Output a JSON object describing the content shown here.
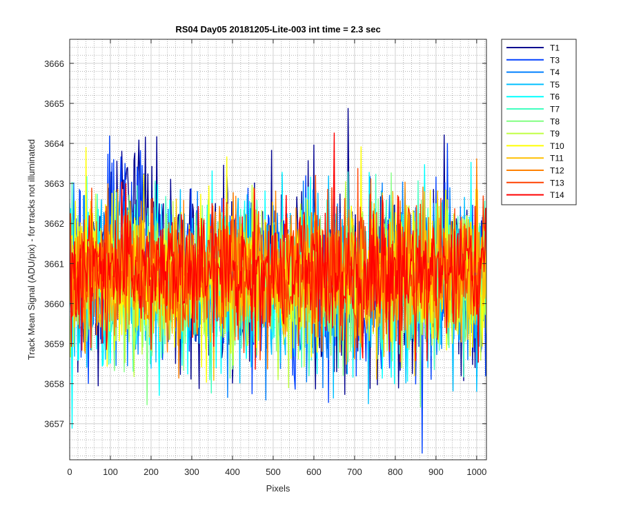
{
  "chart_data": {
    "type": "line",
    "title": "RS04 Day05 20181205-Lite-003 int time = 2.3 sec",
    "xlabel": "Pixels",
    "ylabel": "Track Mean Signal (ADU/pix) - for tracks not illuminated",
    "xlim": [
      0,
      1024
    ],
    "ylim": [
      3656.1,
      3666.6
    ],
    "xticks": [
      0,
      100,
      200,
      300,
      400,
      500,
      600,
      700,
      800,
      900,
      1000
    ],
    "yticks": [
      3657,
      3658,
      3659,
      3660,
      3661,
      3662,
      3663,
      3664,
      3665,
      3666
    ],
    "grid": "major and minor",
    "legend_position": "outside top-right",
    "series": [
      {
        "name": "T1",
        "color": "#00008f",
        "mean": 3660.6,
        "sd": 1.25,
        "bump": 3.3
      },
      {
        "name": "T3",
        "color": "#0040ff",
        "mean": 3660.6,
        "sd": 1.2,
        "bump": 2.0
      },
      {
        "name": "T4",
        "color": "#0080ff",
        "mean": 3660.6,
        "sd": 1.15,
        "bump": 0
      },
      {
        "name": "T5",
        "color": "#00bfff",
        "mean": 3660.6,
        "sd": 1.1,
        "bump": 0
      },
      {
        "name": "T6",
        "color": "#00ffff",
        "mean": 3660.6,
        "sd": 1.1,
        "bump": 0
      },
      {
        "name": "T7",
        "color": "#40ffbf",
        "mean": 3660.6,
        "sd": 1.05,
        "bump": 0
      },
      {
        "name": "T8",
        "color": "#80ff80",
        "mean": 3660.6,
        "sd": 1.05,
        "bump": 0
      },
      {
        "name": "T9",
        "color": "#bfff40",
        "mean": 3660.6,
        "sd": 1.0,
        "bump": 0
      },
      {
        "name": "T10",
        "color": "#ffff00",
        "mean": 3660.7,
        "sd": 1.0,
        "bump": 0
      },
      {
        "name": "T11",
        "color": "#ffbf00",
        "mean": 3660.7,
        "sd": 0.95,
        "bump": 0
      },
      {
        "name": "T12",
        "color": "#ff8000",
        "mean": 3660.8,
        "sd": 0.95,
        "bump": 0
      },
      {
        "name": "T13",
        "color": "#ff4000",
        "mean": 3660.8,
        "sd": 0.9,
        "bump": 0
      },
      {
        "name": "T14",
        "color": "#ff0000",
        "mean": 3660.8,
        "sd": 0.9,
        "bump": 0
      }
    ]
  }
}
